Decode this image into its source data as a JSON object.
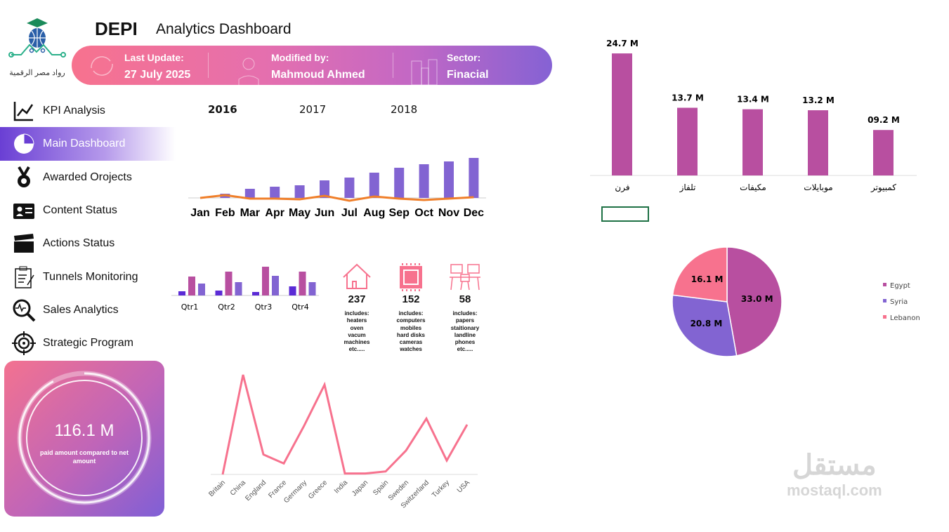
{
  "header": {
    "brand": "DEPI",
    "title": "Analytics Dashboard",
    "logo_text": "رواد مصر الرقمية"
  },
  "banner": {
    "last_update_label": "Last Update:",
    "last_update": "27 July 2025",
    "modified_label": "Modified by:",
    "modified_by": "Mahmoud Ahmed",
    "sector_label": "Sector:",
    "sector": "Finacial"
  },
  "sidebar": {
    "items": [
      {
        "label": "KPI Analysis",
        "icon": "line-chart-icon"
      },
      {
        "label": "Main Dashboard",
        "icon": "pie-chart-icon",
        "active": true
      },
      {
        "label": "Awarded Orojects",
        "icon": "medal-icon"
      },
      {
        "label": "Content Status",
        "icon": "id-card-icon"
      },
      {
        "label": "Actions Status",
        "icon": "clapperboard-icon"
      },
      {
        "label": "Tunnels Monitoring",
        "icon": "clipboard-icon"
      },
      {
        "label": "Sales Analytics",
        "icon": "magnifier-pulse-icon"
      },
      {
        "label": "Strategic Program",
        "icon": "target-icon"
      }
    ]
  },
  "kpi_card": {
    "value": "116.1 M",
    "caption": "paid amount compared to net amount",
    "fill_percent": 92
  },
  "years": {
    "items": [
      "2016",
      "2017",
      "2018"
    ],
    "selected": "2016",
    "accent": "#1f6fb5"
  },
  "categories": [
    {
      "count": "237",
      "icon": "house-icon",
      "lines": [
        "includes:",
        "heaters",
        "oven",
        "vacum",
        "machines",
        "etc....."
      ]
    },
    {
      "count": "152",
      "icon": "chip-icon",
      "lines": [
        "includes:",
        "computers",
        "mobiles",
        "hard disks",
        "cameras",
        "watches"
      ]
    },
    {
      "count": "58",
      "icon": "office-desk-icon",
      "lines": [
        "includes:",
        "papers",
        "staitionary",
        "landline",
        "phones",
        "etc....."
      ]
    }
  ],
  "watermark": {
    "text": "مستقل",
    "sub": "mostaql.com"
  },
  "chart_data": [
    {
      "id": "monthly",
      "type": "bar",
      "categories": [
        "Jan",
        "Feb",
        "Mar",
        "Apr",
        "May",
        "Jun",
        "Jul",
        "Aug",
        "Sep",
        "Oct",
        "Nov",
        "Dec"
      ],
      "series": [
        {
          "type": "bar",
          "values": [
            0,
            6,
            13,
            16,
            18,
            25,
            29,
            36,
            43,
            48,
            52,
            57
          ],
          "color": "#8264d2"
        },
        {
          "type": "line",
          "values": [
            0,
            4,
            -1,
            -1,
            -2,
            3,
            -4,
            2,
            -1,
            -3,
            -1,
            1
          ],
          "color": "#f07f2a"
        }
      ]
    },
    {
      "id": "quarterly",
      "type": "bar",
      "categories": [
        "Qtr1",
        "Qtr2",
        "Qtr3",
        "Qtr4"
      ],
      "series": [
        {
          "values": [
            6,
            7,
            5,
            13
          ],
          "color": "#5b2bd6"
        },
        {
          "values": [
            27,
            34,
            41,
            34
          ],
          "color": "#b84fa0"
        },
        {
          "values": [
            17,
            19,
            28,
            19
          ],
          "color": "#8264d2"
        }
      ]
    },
    {
      "id": "products",
      "type": "bar",
      "categories": [
        "فرن",
        "تلفاز",
        "مكيفات",
        "موبايلات",
        "كمبيوتر"
      ],
      "values": [
        24.7,
        13.7,
        13.4,
        13.2,
        9.2
      ],
      "labels": [
        "24.7 M",
        "13.7 M",
        "13.4 M",
        "13.2 M",
        "09.2 M"
      ],
      "color": "#b84fa0"
    },
    {
      "id": "countries",
      "type": "pie",
      "categories": [
        "Egypt",
        "Syria",
        "Lebanon"
      ],
      "values": [
        33.0,
        20.8,
        16.1
      ],
      "labels": [
        "33.0 M",
        "20.8 M",
        "16.1 M"
      ],
      "colors": [
        "#b84fa0",
        "#8264d2",
        "#f7728e"
      ],
      "legend": "right"
    },
    {
      "id": "country-line",
      "type": "line",
      "categories": [
        "Britain",
        "China",
        "England",
        "France",
        "Germany",
        "Greece",
        "India",
        "Japan",
        "Spain",
        "Sweden",
        "Switzerland",
        "Turkey",
        "USA"
      ],
      "values": [
        0,
        100,
        20,
        11,
        49,
        90,
        1,
        1,
        3,
        24,
        56,
        14,
        50
      ],
      "color": "#f7728e"
    }
  ]
}
